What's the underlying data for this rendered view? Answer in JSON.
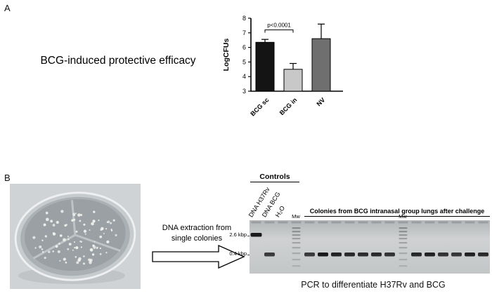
{
  "panel_a": {
    "label": "A",
    "title": "BCG-induced protective efficacy"
  },
  "chart_data": {
    "type": "bar",
    "title": "",
    "xlabel": "",
    "ylabel": "LogCFUs",
    "ylim": [
      3,
      8
    ],
    "yticks": [
      3,
      4,
      5,
      6,
      7,
      8
    ],
    "categories": [
      "BCG sc",
      "BCG in",
      "NV"
    ],
    "values": [
      6.35,
      4.5,
      6.6
    ],
    "errors": [
      0.2,
      0.4,
      1.0
    ],
    "bar_colors": [
      "#141414",
      "#c8c8c8",
      "#6f6f6f"
    ],
    "significance": {
      "text": "p<0.0001",
      "from_index": 0,
      "to_index": 1,
      "line_y": 7.2
    },
    "grid": false,
    "legend": "none"
  },
  "panel_b": {
    "label": "B",
    "arrow_text_line1": "DNA extraction from",
    "arrow_text_line2": "single colonies",
    "gel": {
      "controls_label": "Controls",
      "colonies_header": "Colonies from BCG intranasal group lungs after challenge",
      "mw_label": "Mw",
      "size_markers": [
        "2.6 kbp",
        "0.4 kbp"
      ],
      "lanes": [
        {
          "label": "DNA H37Rv",
          "band": "upper"
        },
        {
          "label": "DNA BCG",
          "band": "lower"
        },
        {
          "label": "H₂O",
          "band": "none"
        },
        {
          "band": "ladder"
        },
        {
          "band": "lower"
        },
        {
          "band": "lower"
        },
        {
          "band": "lower"
        },
        {
          "band": "lower"
        },
        {
          "band": "lower"
        },
        {
          "band": "lower"
        },
        {
          "band": "lower"
        },
        {
          "band": "ladder"
        },
        {
          "band": "lower"
        },
        {
          "band": "lower"
        },
        {
          "band": "lower"
        },
        {
          "band": "lower"
        },
        {
          "band": "lower"
        },
        {
          "band": "lower"
        }
      ]
    },
    "caption": "PCR to differentiate H37Rv and BCG"
  }
}
